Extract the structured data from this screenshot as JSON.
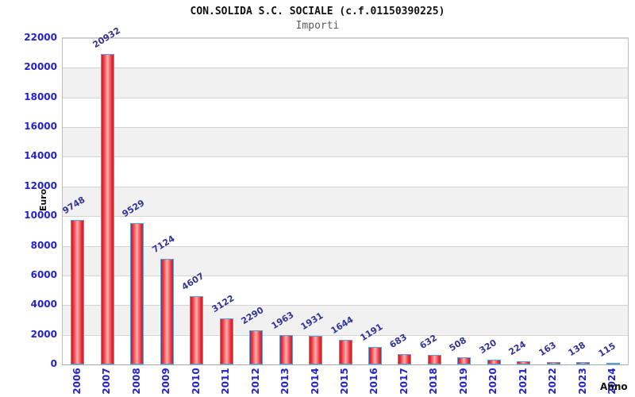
{
  "header": {
    "title": "CON.SOLIDA S.C. SOCIALE (c.f.01150390225)",
    "subtitle": "Importi"
  },
  "chart_data": {
    "type": "bar",
    "title": "CON.SOLIDA S.C. SOCIALE (c.f.01150390225)",
    "subtitle": "Importi",
    "xlabel": "Anno",
    "ylabel": "Euro",
    "categories": [
      "2006",
      "2007",
      "2008",
      "2009",
      "2010",
      "2011",
      "2012",
      "2013",
      "2014",
      "2015",
      "2016",
      "2017",
      "2018",
      "2019",
      "2020",
      "2021",
      "2022",
      "2023",
      "2024"
    ],
    "values": [
      9748,
      20932,
      9529,
      7124,
      4607,
      3122,
      2290,
      1963,
      1931,
      1644,
      1191,
      683,
      632,
      508,
      320,
      224,
      163,
      138,
      115
    ],
    "ylim": [
      0,
      22000
    ],
    "ytick_step": 2000,
    "grid": true,
    "value_labels_shown": true,
    "legend": "none",
    "colors": {
      "bar_edge_red": "#c52029",
      "bar_bright_red": "#ea3540",
      "bar_center_light": "#ffb0b0",
      "bar_border_blue": "#57a0dd",
      "tick_label_blue": "#2323cc",
      "value_label_navy": "#333399",
      "band_gray": "#f1f1f1",
      "grid_line": "#d4d4d4",
      "title_color": "#111111",
      "subtitle_color": "#5a5a5a"
    }
  }
}
